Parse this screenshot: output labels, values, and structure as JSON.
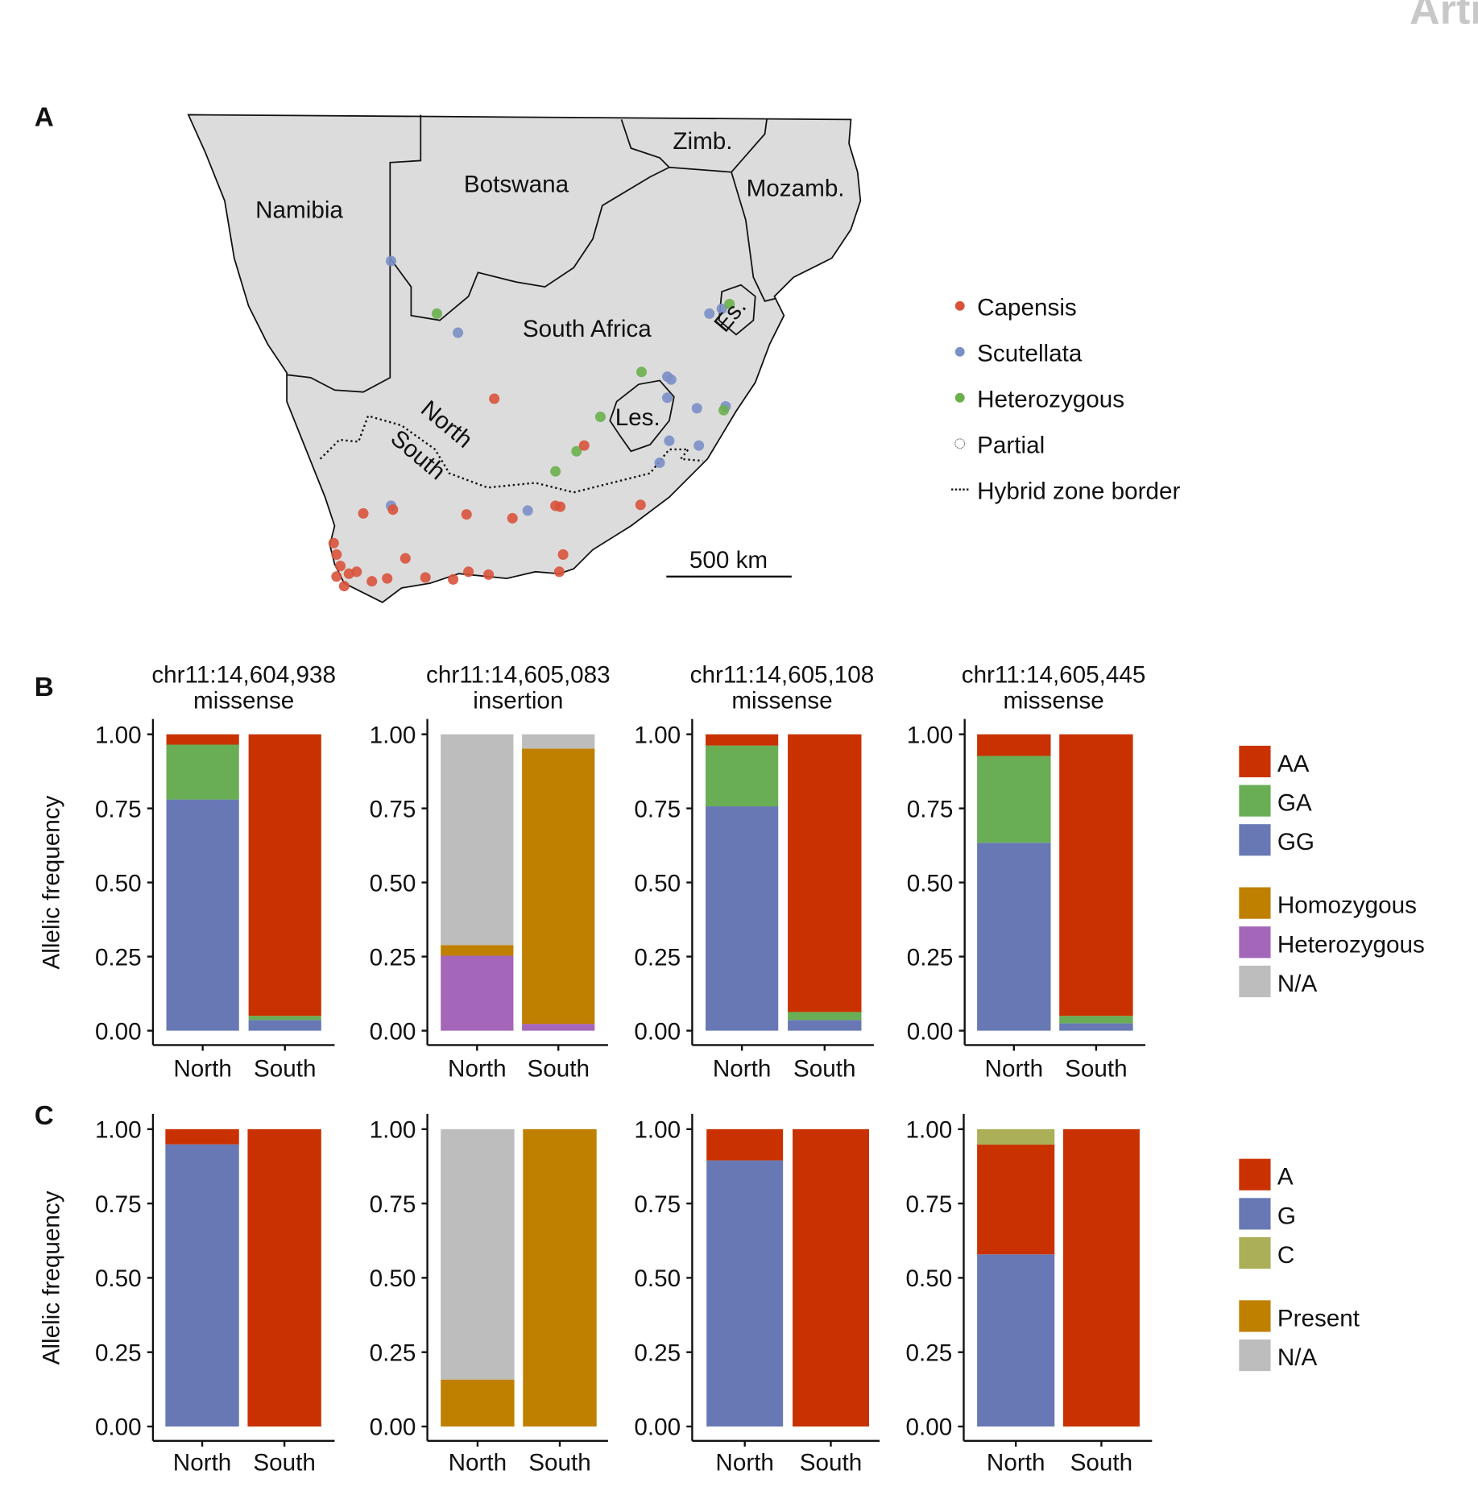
{
  "watermark": "Arti",
  "panel_labels": {
    "a": "A",
    "b": "B",
    "c": "C"
  },
  "map": {
    "country_labels": [
      "Namibia",
      "Botswana",
      "Zimb.",
      "Mozamb.",
      "South Africa",
      "Les.",
      "Es."
    ],
    "zone_labels": {
      "north": "North",
      "south": "South"
    },
    "scale_bar": "500 km",
    "legend": [
      {
        "label": "Capensis",
        "color": "#d9533c"
      },
      {
        "label": "Scutellata",
        "color": "#7b8fc7"
      },
      {
        "label": "Heterozygous",
        "color": "#6ab04c"
      },
      {
        "label": "Partial",
        "color": "#ffffff"
      },
      {
        "label": "Hybrid zone border",
        "color": "#000000"
      }
    ],
    "colors": {
      "land": "#dcdcdc",
      "capensis": "#d9533c",
      "scutellata": "#7b8fc7",
      "heterozygous": "#6ab04c"
    }
  },
  "chart_data": [
    {
      "type": "bar",
      "panel": "B",
      "title": "chr11:14,604,938 missense",
      "title_lines": [
        "chr11:14,604,938",
        "missense"
      ],
      "ylabel": "Allelic frequency",
      "categories": [
        "North",
        "South"
      ],
      "ylim": [
        0,
        1
      ],
      "yticks": [
        "0.00",
        "0.25",
        "0.50",
        "0.75",
        "1.00"
      ],
      "series": [
        {
          "name": "GG",
          "values": [
            0.78,
            0.036
          ]
        },
        {
          "name": "GA",
          "values": [
            0.185,
            0.014
          ]
        },
        {
          "name": "AA",
          "values": [
            0.035,
            0.95
          ]
        }
      ]
    },
    {
      "type": "bar",
      "panel": "B",
      "title": "chr11:14,605,083 insertion",
      "title_lines": [
        "chr11:14,605,083",
        "insertion"
      ],
      "categories": [
        "North",
        "South"
      ],
      "ylim": [
        0,
        1
      ],
      "yticks": [
        "0.00",
        "0.25",
        "0.50",
        "0.75",
        "1.00"
      ],
      "series": [
        {
          "name": "Heterozygous",
          "values": [
            0.253,
            0.023
          ]
        },
        {
          "name": "Homozygous",
          "values": [
            0.036,
            0.929
          ]
        },
        {
          "name": "N/A",
          "values": [
            0.711,
            0.048
          ]
        }
      ]
    },
    {
      "type": "bar",
      "panel": "B",
      "title": "chr11:14,605,108 missense",
      "title_lines": [
        "chr11:14,605,108",
        "missense"
      ],
      "categories": [
        "North",
        "South"
      ],
      "ylim": [
        0,
        1
      ],
      "yticks": [
        "0.00",
        "0.25",
        "0.50",
        "0.75",
        "1.00"
      ],
      "series": [
        {
          "name": "GG",
          "values": [
            0.757,
            0.036
          ]
        },
        {
          "name": "GA",
          "values": [
            0.205,
            0.027
          ]
        },
        {
          "name": "AA",
          "values": [
            0.038,
            0.937
          ]
        }
      ]
    },
    {
      "type": "bar",
      "panel": "B",
      "title": "chr11:14,605,445 missense",
      "title_lines": [
        "chr11:14,605,445",
        "missense"
      ],
      "categories": [
        "North",
        "South"
      ],
      "ylim": [
        0,
        1
      ],
      "yticks": [
        "0.00",
        "0.25",
        "0.50",
        "0.75",
        "1.00"
      ],
      "series": [
        {
          "name": "GG",
          "values": [
            0.634,
            0.025
          ]
        },
        {
          "name": "GA",
          "values": [
            0.293,
            0.025
          ]
        },
        {
          "name": "AA",
          "values": [
            0.073,
            0.95
          ]
        }
      ]
    },
    {
      "type": "bar",
      "panel": "C",
      "ylabel": "Allelic frequency",
      "categories": [
        "North",
        "South"
      ],
      "ylim": [
        0,
        1
      ],
      "yticks": [
        "0.00",
        "0.25",
        "0.50",
        "0.75",
        "1.00"
      ],
      "series": [
        {
          "name": "G",
          "values": [
            0.949,
            0
          ]
        },
        {
          "name": "A",
          "values": [
            0.051,
            1.0
          ]
        }
      ]
    },
    {
      "type": "bar",
      "panel": "C",
      "categories": [
        "North",
        "South"
      ],
      "ylim": [
        0,
        1
      ],
      "yticks": [
        "0.00",
        "0.25",
        "0.50",
        "0.75",
        "1.00"
      ],
      "series": [
        {
          "name": "Present",
          "values": [
            0.158,
            1.0
          ]
        },
        {
          "name": "N/A",
          "values": [
            0.842,
            0
          ]
        }
      ]
    },
    {
      "type": "bar",
      "panel": "C",
      "categories": [
        "North",
        "South"
      ],
      "ylim": [
        0,
        1
      ],
      "yticks": [
        "0.00",
        "0.25",
        "0.50",
        "0.75",
        "1.00"
      ],
      "series": [
        {
          "name": "G",
          "values": [
            0.895,
            0
          ]
        },
        {
          "name": "A",
          "values": [
            0.105,
            1.0
          ]
        }
      ]
    },
    {
      "type": "bar",
      "panel": "C",
      "categories": [
        "North",
        "South"
      ],
      "ylim": [
        0,
        1
      ],
      "yticks": [
        "0.00",
        "0.25",
        "0.50",
        "0.75",
        "1.00"
      ],
      "series": [
        {
          "name": "G",
          "values": [
            0.579,
            0
          ]
        },
        {
          "name": "A",
          "values": [
            0.369,
            1.0
          ]
        },
        {
          "name": "C",
          "values": [
            0.052,
            0
          ]
        }
      ]
    }
  ],
  "legends": {
    "b": [
      [
        {
          "label": "AA",
          "color": "#c93200"
        },
        {
          "label": "GA",
          "color": "#69ad55"
        },
        {
          "label": "GG",
          "color": "#6878b4"
        }
      ],
      [
        {
          "label": "Homozygous",
          "color": "#bf8000"
        },
        {
          "label": "Heterozygous",
          "color": "#a466b9"
        },
        {
          "label": "N/A",
          "color": "#bdbdbd"
        }
      ]
    ],
    "c": [
      [
        {
          "label": "A",
          "color": "#c93200"
        },
        {
          "label": "G",
          "color": "#6878b4"
        },
        {
          "label": "C",
          "color": "#aaaf58"
        }
      ],
      [
        {
          "label": "Present",
          "color": "#bf8000"
        },
        {
          "label": "N/A",
          "color": "#bdbdbd"
        }
      ]
    ]
  },
  "series_colors": {
    "AA": "#c93200",
    "GA": "#69ad55",
    "GG": "#6878b4",
    "Homozygous": "#bf8000",
    "Heterozygous": "#a466b9",
    "N/A": "#bdbdbd",
    "A": "#c93200",
    "G": "#6878b4",
    "C": "#aaaf58",
    "Present": "#bf8000"
  }
}
